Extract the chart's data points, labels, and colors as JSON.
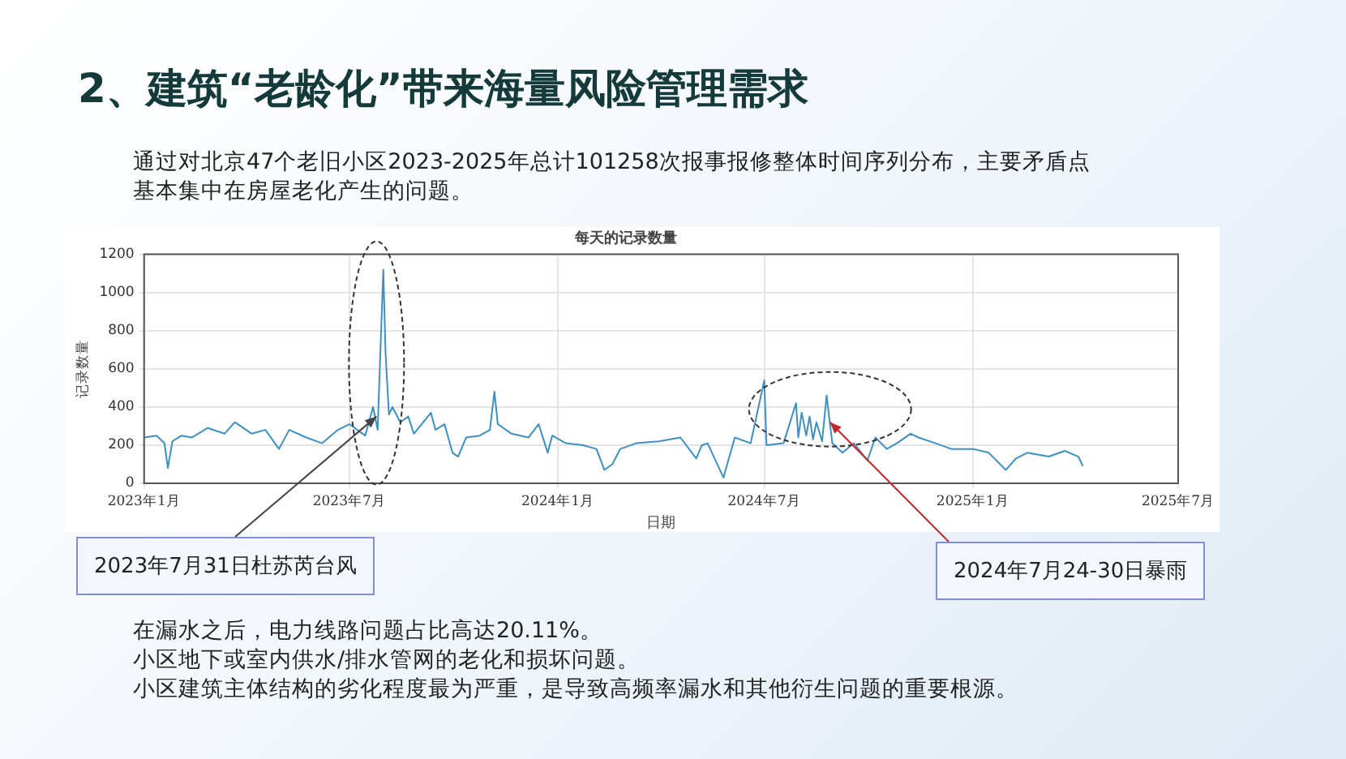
{
  "chart_data": {
    "type": "line",
    "title": "每天的记录数量",
    "xlabel": "日期",
    "ylabel": "记录数量",
    "x": [
      "2023-01-01",
      "2023-01-12",
      "2023-01-19",
      "2023-01-22",
      "2023-01-26",
      "2023-02-03",
      "2023-02-12",
      "2023-02-26",
      "2023-03-13",
      "2023-03-22",
      "2023-04-06",
      "2023-04-18",
      "2023-04-30",
      "2023-05-09",
      "2023-05-24",
      "2023-06-07",
      "2023-06-21",
      "2023-07-01",
      "2023-07-15",
      "2023-07-22",
      "2023-07-26",
      "2023-07-31",
      "2023-08-02",
      "2023-08-05",
      "2023-08-08",
      "2023-08-15",
      "2023-08-22",
      "2023-08-27",
      "2023-09-11",
      "2023-09-15",
      "2023-09-23",
      "2023-09-30",
      "2023-10-05",
      "2023-10-12",
      "2023-10-24",
      "2023-11-02",
      "2023-11-06",
      "2023-11-09",
      "2023-11-21",
      "2023-12-06",
      "2023-12-15",
      "2023-12-23",
      "2023-12-27",
      "2024-01-08",
      "2024-01-23",
      "2024-02-04",
      "2024-02-11",
      "2024-02-18",
      "2024-02-25",
      "2024-03-10",
      "2024-03-30",
      "2024-04-18",
      "2024-05-02",
      "2024-05-07",
      "2024-05-12",
      "2024-05-26",
      "2024-06-05",
      "2024-06-19",
      "2024-07-01",
      "2024-07-03",
      "2024-07-18",
      "2024-07-29",
      "2024-07-31",
      "2024-08-03",
      "2024-08-07",
      "2024-08-10",
      "2024-08-13",
      "2024-08-16",
      "2024-08-21",
      "2024-08-25",
      "2024-08-30",
      "2024-09-08",
      "2024-09-18",
      "2024-09-30",
      "2024-10-07",
      "2024-10-17",
      "2024-10-26",
      "2024-11-07",
      "2024-11-14",
      "2024-11-29",
      "2024-12-13",
      "2025-01-01",
      "2025-01-15",
      "2025-01-30",
      "2025-02-08",
      "2025-02-18",
      "2025-03-09",
      "2025-03-23",
      "2025-04-04",
      "2025-04-08"
    ],
    "series": [
      {
        "color": "#3d8fc4",
        "values": [
          240,
          250,
          210,
          80,
          220,
          250,
          240,
          290,
          260,
          320,
          260,
          280,
          180,
          280,
          240,
          210,
          280,
          310,
          250,
          400,
          280,
          1120,
          680,
          360,
          400,
          320,
          350,
          260,
          370,
          280,
          310,
          160,
          140,
          240,
          250,
          280,
          480,
          310,
          260,
          240,
          310,
          160,
          250,
          210,
          200,
          180,
          70,
          100,
          180,
          210,
          220,
          240,
          130,
          200,
          210,
          30,
          240,
          210,
          540,
          200,
          210,
          420,
          240,
          370,
          250,
          350,
          230,
          320,
          220,
          460,
          210,
          160,
          210,
          120,
          240,
          180,
          210,
          260,
          240,
          210,
          180,
          180,
          160,
          70,
          130,
          160,
          140,
          170,
          140,
          90
        ]
      }
    ],
    "xlim": [
      "2023-01",
      "2025-07"
    ],
    "xticks": [
      {
        "value": "2023-01",
        "label": "2023年1月"
      },
      {
        "value": "2023-07",
        "label": "2023年7月"
      },
      {
        "value": "2024-01",
        "label": "2024年1月"
      },
      {
        "value": "2024-07",
        "label": "2024年7月"
      },
      {
        "value": "2025-01",
        "label": "2025年1月"
      },
      {
        "value": "2025-07",
        "label": "2025年7月"
      }
    ],
    "ylim": [
      0,
      1200
    ],
    "yticks": [
      0,
      200,
      400,
      600,
      800,
      1000,
      1200
    ],
    "grid": true,
    "legend": false,
    "marker": "none",
    "line_style": "solid",
    "annotations": [
      "2、建筑“老龄化”带来海量风险管理需求",
      "通过对北京47个老旧小区2023-2025年总计101258次报事报修整体时间序列分布，主要矛盾点基本集中在房屋老化产生的问题。",
      "在漏水之后，电力线路问题占比高达20.11%。",
      "小区地下或室内供水/排水管网的老化和损坏问题。",
      "小区建筑主体结构的劣化程度最为严重，是导致高频率漏水和其他衍生问题的重要根源。",
      {
        "text": "2023年7月31日杜苏芮台风",
        "x": "2023-07-25",
        "y": 350
      },
      {
        "text": "2024年7月24-30日暴雨",
        "x": "2024-08-28",
        "y": 320
      }
    ]
  }
}
